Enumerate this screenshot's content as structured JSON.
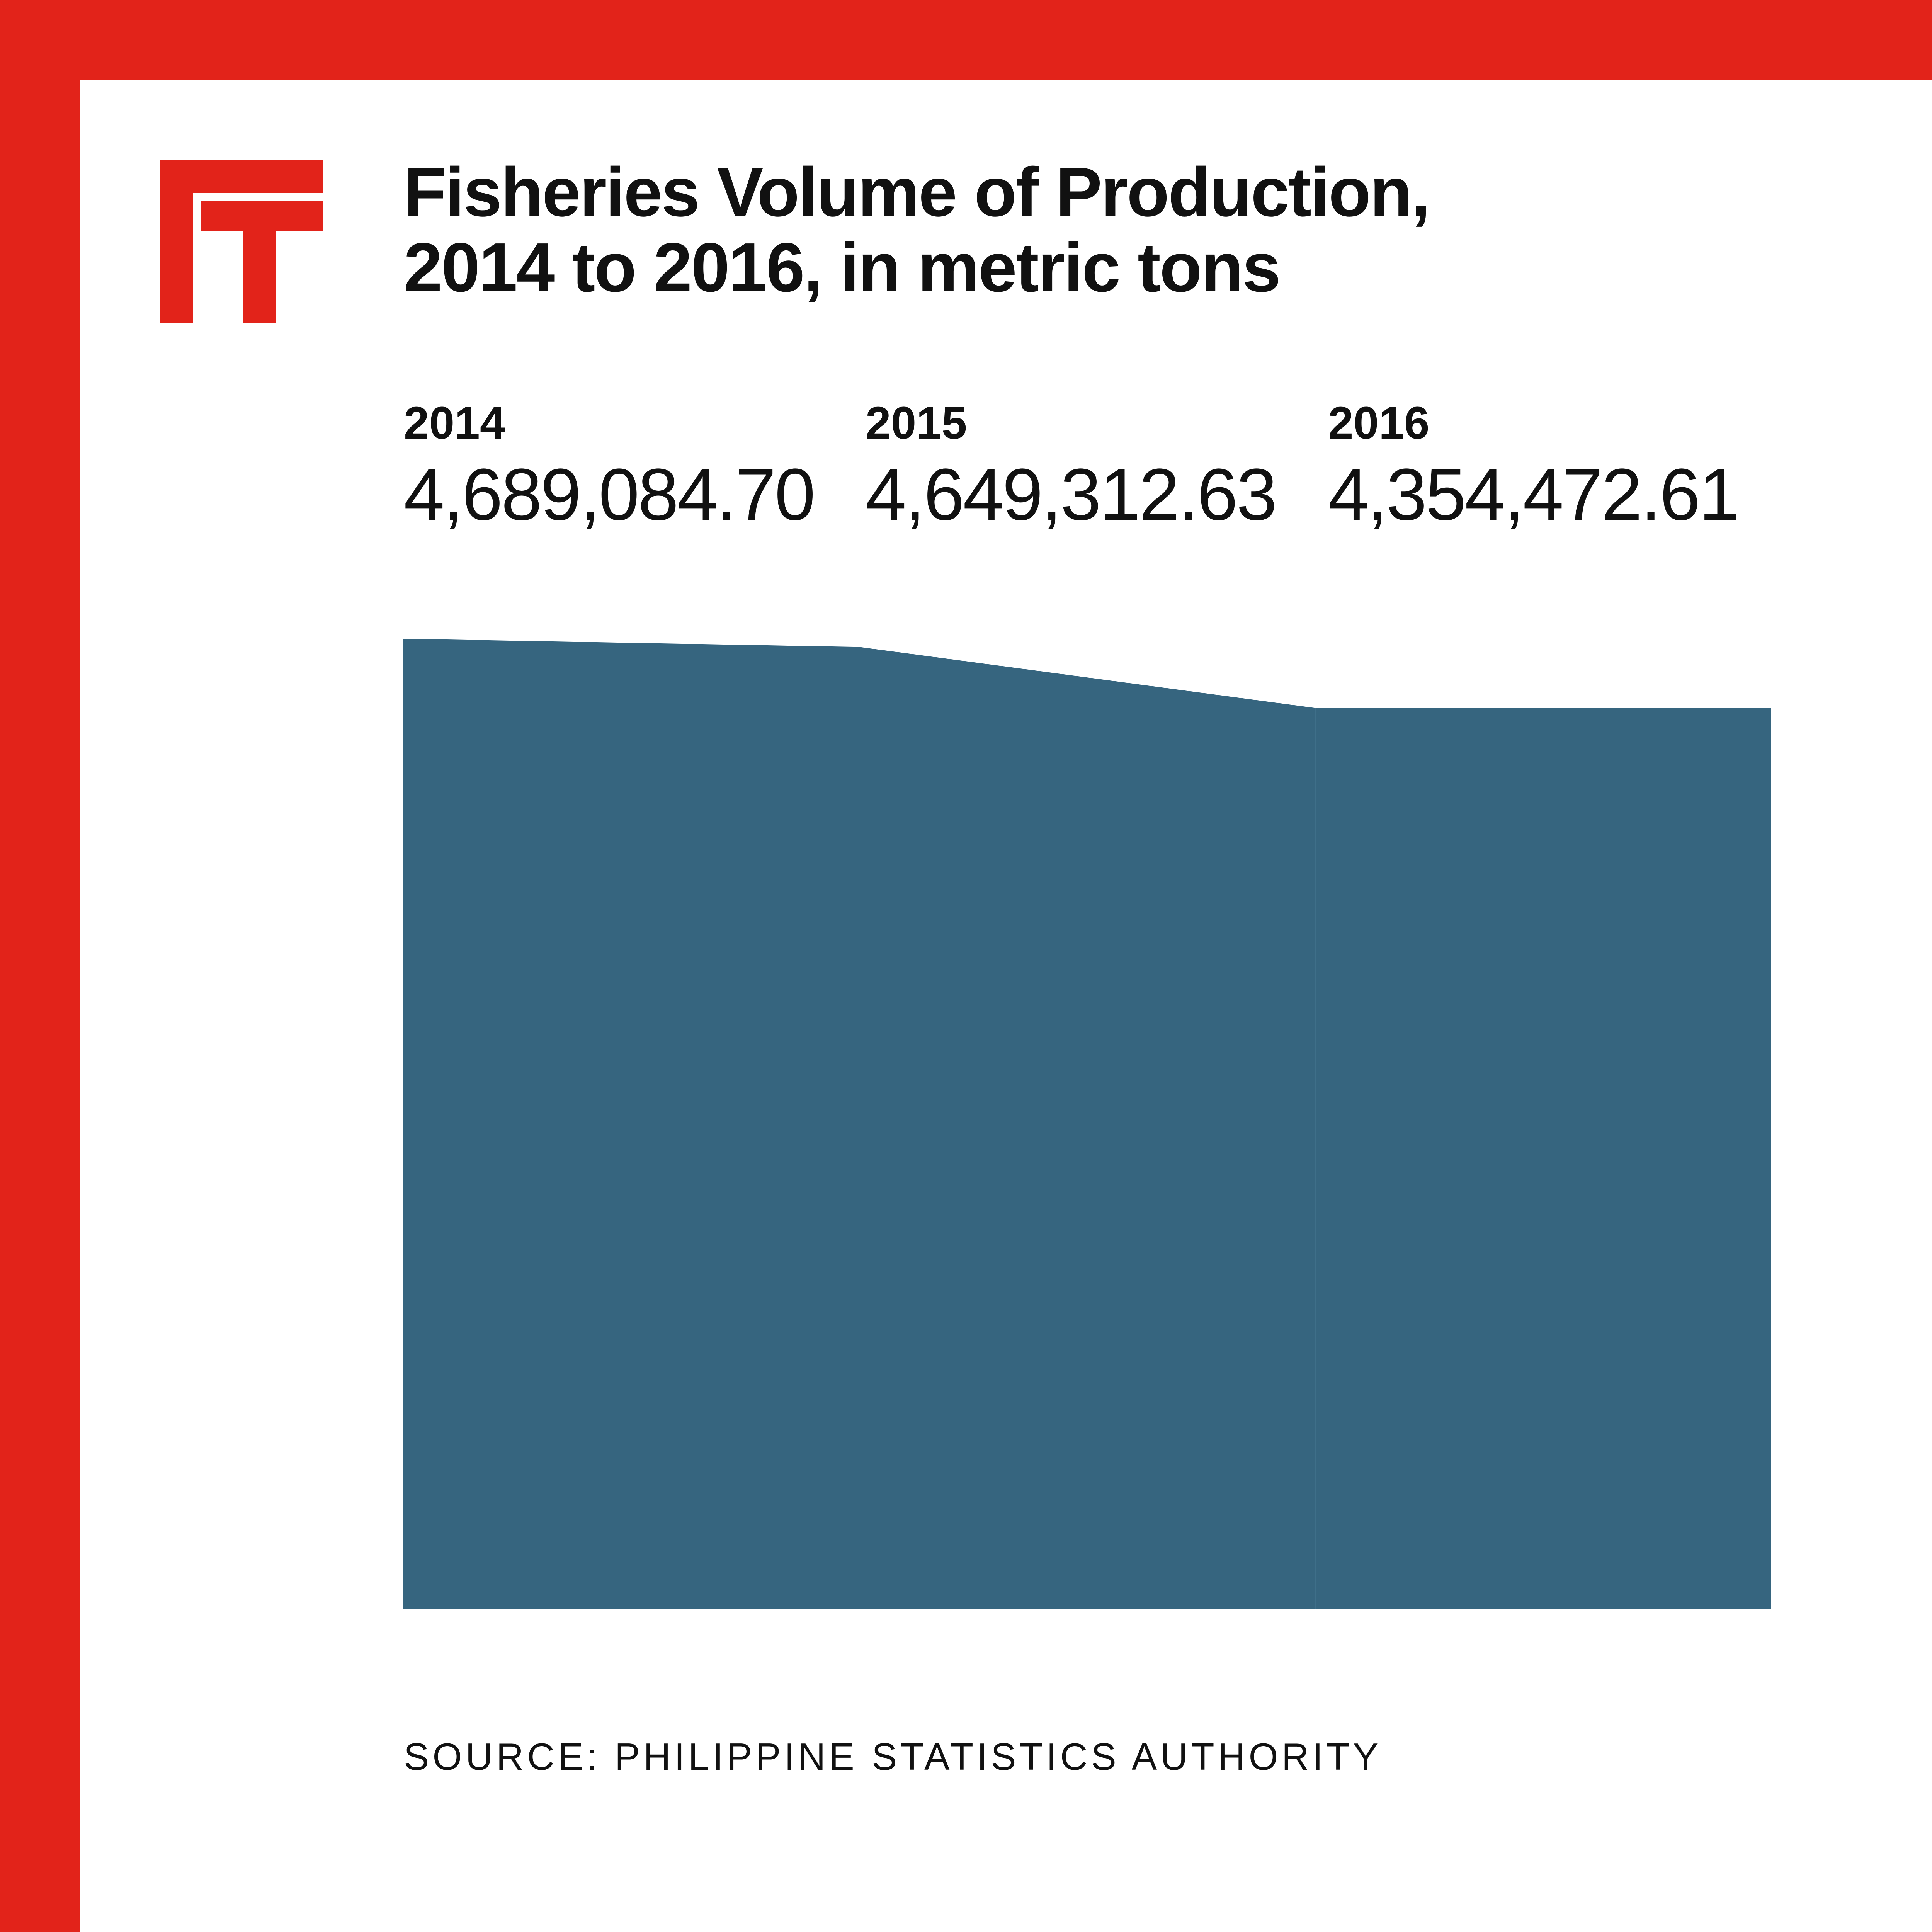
{
  "brand": {
    "logo_icon": "ft-logo-icon",
    "accent_color": "#e2231a"
  },
  "title_lines": [
    "Fisheries Volume of Production,",
    "2014 to 2016, in metric tons"
  ],
  "stats": [
    {
      "year": "2014",
      "value": "4,689,084.70"
    },
    {
      "year": "2015",
      "value": "4,649,312.63"
    },
    {
      "year": "2016",
      "value": "4,354,472.61"
    }
  ],
  "source": "SOURCE: PHILIPPINE STATISTICS AUTHORITY",
  "chart_data": {
    "type": "area",
    "title": "Fisheries Volume of Production, 2014 to 2016, in metric tons",
    "x": [
      "2014",
      "2015",
      "2016"
    ],
    "series": [
      {
        "values": [
          4689084.7,
          4649312.63,
          4354472.61
        ],
        "color": "#36657f"
      }
    ],
    "ylim": [
      0,
      4689084.7
    ],
    "grid": false
  }
}
